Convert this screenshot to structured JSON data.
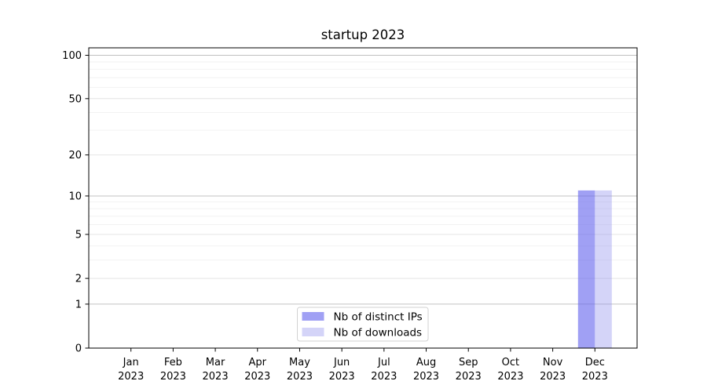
{
  "chart_data": {
    "type": "bar",
    "title": "startup 2023",
    "categories": [
      "Jan",
      "Feb",
      "Mar",
      "Apr",
      "May",
      "Jun",
      "Jul",
      "Aug",
      "Sep",
      "Oct",
      "Nov",
      "Dec"
    ],
    "category_year_line": "2023",
    "series": [
      {
        "name": "Nb of distinct IPs",
        "color": "rgba(102,102,238,0.62)",
        "legend_color": "rgba(102,102,238,0.62)",
        "values": [
          0,
          0,
          0,
          0,
          0,
          0,
          0,
          0,
          0,
          0,
          0,
          11
        ]
      },
      {
        "name": "Nb of downloads",
        "color": "rgba(153,153,238,0.42)",
        "legend_color": "rgba(153,153,238,0.42)",
        "values": [
          0,
          0,
          0,
          0,
          0,
          0,
          0,
          0,
          0,
          0,
          0,
          11
        ]
      }
    ],
    "xlabel": "",
    "ylabel": "",
    "yscale": "log1p",
    "ylim": [
      0,
      112.6
    ],
    "y_major_ticks": [
      0,
      1,
      2,
      5,
      10,
      20,
      50,
      100
    ],
    "y_decade_gridlines": [
      1,
      10,
      100
    ],
    "y_minor_gridlines": [
      3,
      4,
      6,
      7,
      8,
      9,
      30,
      40,
      60,
      70,
      80,
      90
    ],
    "grid": true,
    "legend_position": "lower center",
    "colors": {
      "spine": "#000000",
      "decade_grid": "#c0c0c0",
      "major_grid": "#e4e4e4",
      "minor_grid": "#f2f2f2",
      "legend_border": "#d2d2d2",
      "legend_bg": "#ffffff",
      "text": "#000000"
    }
  }
}
